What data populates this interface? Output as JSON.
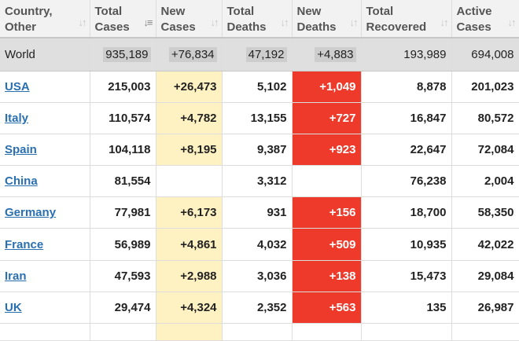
{
  "headers": [
    {
      "line1": "Country,",
      "line2": "Other",
      "sort": "inactive"
    },
    {
      "line1": "Total",
      "line2": "Cases",
      "sort": "active"
    },
    {
      "line1": "New",
      "line2": "Cases",
      "sort": "inactive"
    },
    {
      "line1": "Total",
      "line2": "Deaths",
      "sort": "inactive"
    },
    {
      "line1": "New",
      "line2": "Deaths",
      "sort": "inactive"
    },
    {
      "line1": "Total",
      "line2": "Recovered",
      "sort": "inactive"
    },
    {
      "line1": "Active",
      "line2": "Cases",
      "sort": "inactive"
    }
  ],
  "world": {
    "country": "World",
    "total_cases": "935,189",
    "new_cases": "+76,834",
    "total_deaths": "47,192",
    "new_deaths": "+4,883",
    "total_recovered": "193,989",
    "active_cases": "694,008"
  },
  "rows": [
    {
      "country": "USA",
      "total_cases": "215,003",
      "new_cases": "+26,473",
      "total_deaths": "5,102",
      "new_deaths": "+1,049",
      "total_recovered": "8,878",
      "active_cases": "201,023"
    },
    {
      "country": "Italy",
      "total_cases": "110,574",
      "new_cases": "+4,782",
      "total_deaths": "13,155",
      "new_deaths": "+727",
      "total_recovered": "16,847",
      "active_cases": "80,572"
    },
    {
      "country": "Spain",
      "total_cases": "104,118",
      "new_cases": "+8,195",
      "total_deaths": "9,387",
      "new_deaths": "+923",
      "total_recovered": "22,647",
      "active_cases": "72,084"
    },
    {
      "country": "China",
      "total_cases": "81,554",
      "new_cases": "",
      "total_deaths": "3,312",
      "new_deaths": "",
      "total_recovered": "76,238",
      "active_cases": "2,004"
    },
    {
      "country": "Germany",
      "total_cases": "77,981",
      "new_cases": "+6,173",
      "total_deaths": "931",
      "new_deaths": "+156",
      "total_recovered": "18,700",
      "active_cases": "58,350"
    },
    {
      "country": "France",
      "total_cases": "56,989",
      "new_cases": "+4,861",
      "total_deaths": "4,032",
      "new_deaths": "+509",
      "total_recovered": "10,935",
      "active_cases": "42,022"
    },
    {
      "country": "Iran",
      "total_cases": "47,593",
      "new_cases": "+2,988",
      "total_deaths": "3,036",
      "new_deaths": "+138",
      "total_recovered": "15,473",
      "active_cases": "29,084"
    },
    {
      "country": "UK",
      "total_cases": "29,474",
      "new_cases": "+4,324",
      "total_deaths": "2,352",
      "new_deaths": "+563",
      "total_recovered": "135",
      "active_cases": "26,987"
    }
  ],
  "icons": {
    "sort_inactive": "sort-arrows-icon",
    "sort_active": "sort-descending-icon"
  },
  "colors": {
    "new_cases_bg": "#fff2c2",
    "new_deaths_bg": "#ee3a2a",
    "link": "#2a6fb0",
    "world_bg": "#dfdfdf",
    "header_bg": "#f2f2f2"
  }
}
